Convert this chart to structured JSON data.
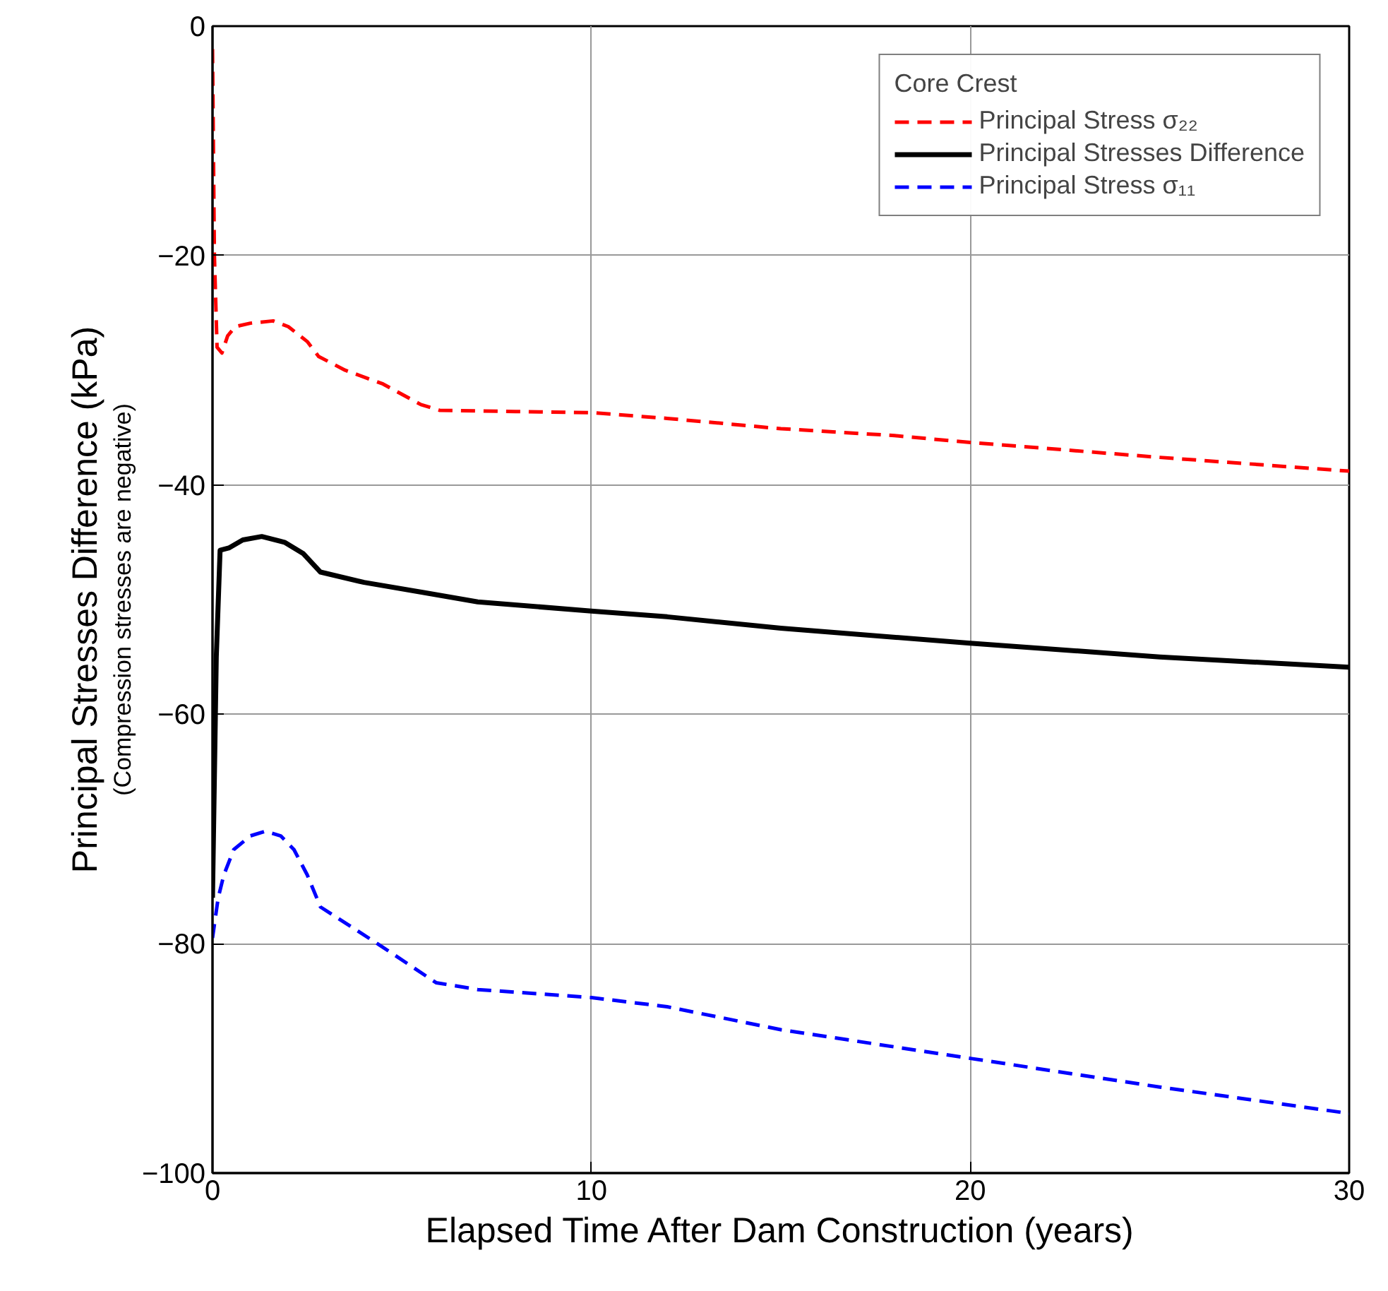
{
  "chart_data": {
    "type": "line",
    "xlabel": "Elapsed Time After Dam Construction (years)",
    "ylabel": "Principal Stresses Difference (kPa)",
    "annotations": [
      "(Compression stresses are negative)"
    ],
    "legend_title": "Core Crest",
    "legend": "top right",
    "grid": true,
    "xlim": [
      0,
      30
    ],
    "ylim": [
      -100,
      0
    ],
    "xticks": [
      0,
      10,
      20,
      30
    ],
    "yticks": [
      -100,
      -80,
      -60,
      -40,
      -20,
      0
    ],
    "series": [
      {
        "name": "Principal Stress σ₂₂",
        "color": "#ff0000",
        "line_style": "dashed",
        "x": [
          0,
          0.05,
          0.12,
          0.25,
          0.4,
          0.6,
          1,
          1.6,
          2,
          2.5,
          2.8,
          3.5,
          4.5,
          5.5,
          6,
          8,
          10,
          12,
          15,
          18,
          20,
          25,
          30
        ],
        "values": [
          -2,
          -20,
          -28,
          -28.5,
          -27,
          -26.2,
          -25.9,
          -25.7,
          -26.2,
          -27.5,
          -28.8,
          -30,
          -31.2,
          -33,
          -33.5,
          -33.6,
          -33.7,
          -34.2,
          -35.1,
          -35.7,
          -36.3,
          -37.6,
          -38.8
        ]
      },
      {
        "name": "Principal Stresses Difference",
        "color": "#000000",
        "line_style": "solid",
        "x": [
          0,
          0.1,
          0.2,
          0.43,
          0.8,
          1.3,
          1.9,
          2.4,
          2.85,
          4,
          5.6,
          7,
          10,
          12,
          15,
          20,
          25,
          30
        ],
        "values": [
          -76,
          -55,
          -45.7,
          -45.5,
          -44.8,
          -44.5,
          -45,
          -46,
          -47.6,
          -48.5,
          -49.4,
          -50.2,
          -51,
          -51.5,
          -52.5,
          -53.8,
          -55,
          -55.9
        ]
      },
      {
        "name": "Principal Stress σ₁₁",
        "color": "#0000ff",
        "line_style": "dashed",
        "x": [
          0,
          0.15,
          0.3,
          0.56,
          1,
          1.4,
          1.8,
          2.15,
          2.5,
          2.85,
          4.4,
          5.9,
          7,
          10,
          12,
          15,
          20,
          25,
          30
        ],
        "values": [
          -79.5,
          -76,
          -74,
          -71.8,
          -70.6,
          -70.2,
          -70.6,
          -71.8,
          -74,
          -76.8,
          -80.1,
          -83.4,
          -84,
          -84.7,
          -85.5,
          -87.5,
          -90,
          -92.5,
          -94.8
        ]
      }
    ]
  }
}
